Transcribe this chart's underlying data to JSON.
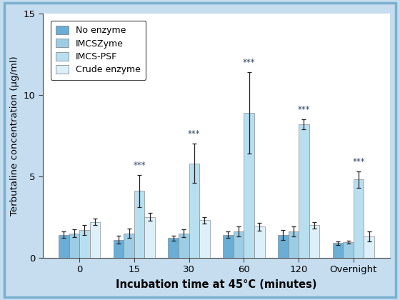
{
  "xlabel": "Incubation time at 45°C (minutes)",
  "ylabel": "Terbutaline concentration (µg/ml)",
  "background_color": "#c5ddef",
  "plot_bg_color": "#ffffff",
  "categories": [
    "0",
    "15",
    "30",
    "60",
    "120",
    "Overnight"
  ],
  "ylim": [
    0,
    15
  ],
  "yticks": [
    0,
    5,
    10,
    15
  ],
  "bar_width": 0.19,
  "series": [
    {
      "name": "No enzyme",
      "color": "#6aaed6",
      "values": [
        1.4,
        1.1,
        1.2,
        1.4,
        1.4,
        0.9
      ],
      "errors": [
        0.2,
        0.25,
        0.15,
        0.2,
        0.3,
        0.1
      ]
    },
    {
      "name": "IMCSZyme",
      "color": "#9dcde4",
      "values": [
        1.5,
        1.5,
        1.5,
        1.6,
        1.6,
        0.95
      ],
      "errors": [
        0.25,
        0.3,
        0.25,
        0.3,
        0.3,
        0.1
      ]
    },
    {
      "name": "IMCS-PSF",
      "color": "#b8dff0",
      "values": [
        1.7,
        4.1,
        5.8,
        8.9,
        8.2,
        4.8
      ],
      "errors": [
        0.3,
        1.0,
        1.2,
        2.5,
        0.3,
        0.5
      ]
    },
    {
      "name": "Crude enzyme",
      "color": "#ddf0fa",
      "values": [
        2.2,
        2.5,
        2.3,
        1.9,
        2.0,
        1.3
      ],
      "errors": [
        0.2,
        0.25,
        0.2,
        0.25,
        0.2,
        0.3
      ]
    }
  ],
  "significance": [
    false,
    true,
    true,
    true,
    true,
    true
  ],
  "sig_label": "***",
  "sig_color": "#334466",
  "legend_loc": "upper left",
  "border_color": "#7ab0d0",
  "outer_bg": "#c5ddef"
}
